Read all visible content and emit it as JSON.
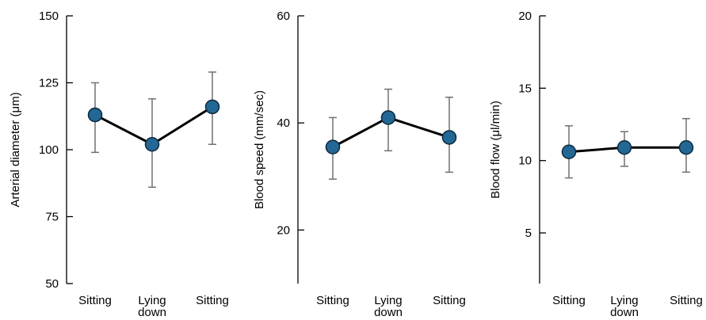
{
  "chart_data": [
    {
      "type": "line",
      "ylabel": "Arterial diameter (μm)",
      "categories": [
        "Sitting",
        "Lying\ndown",
        "Sitting"
      ],
      "ylim": [
        50,
        150
      ],
      "yticks": [
        50,
        75,
        100,
        125,
        150
      ],
      "series": [
        {
          "values": [
            113,
            102,
            116
          ],
          "err_low": [
            99,
            86,
            102
          ],
          "err_high": [
            125,
            119,
            129
          ]
        }
      ],
      "grid": false
    },
    {
      "type": "line",
      "ylabel": "Blood speed (mm/sec)",
      "categories": [
        "Sitting",
        "Lying\ndown",
        "Sitting"
      ],
      "ylim": [
        10,
        60
      ],
      "yticks": [
        20,
        40,
        60
      ],
      "series": [
        {
          "values": [
            35.5,
            41,
            37.3
          ],
          "err_low": [
            29.5,
            34.8,
            30.8
          ],
          "err_high": [
            41,
            46.3,
            44.8
          ]
        }
      ],
      "grid": false
    },
    {
      "type": "line",
      "ylabel": "Blood flow  (μl/min)",
      "categories": [
        "Sitting",
        "Lying\ndown",
        "Sitting"
      ],
      "ylim": [
        1.5,
        20
      ],
      "yticks": [
        5,
        10,
        15,
        20
      ],
      "series": [
        {
          "values": [
            10.6,
            10.9,
            10.9
          ],
          "err_low": [
            8.8,
            9.6,
            9.2
          ],
          "err_high": [
            12.4,
            12,
            12.9
          ]
        }
      ],
      "grid": false
    }
  ],
  "colors": {
    "marker": "#236895",
    "marker_edge": "#0d2940",
    "line": "#000000",
    "errorbar": "#707070",
    "axis": "#000000"
  }
}
